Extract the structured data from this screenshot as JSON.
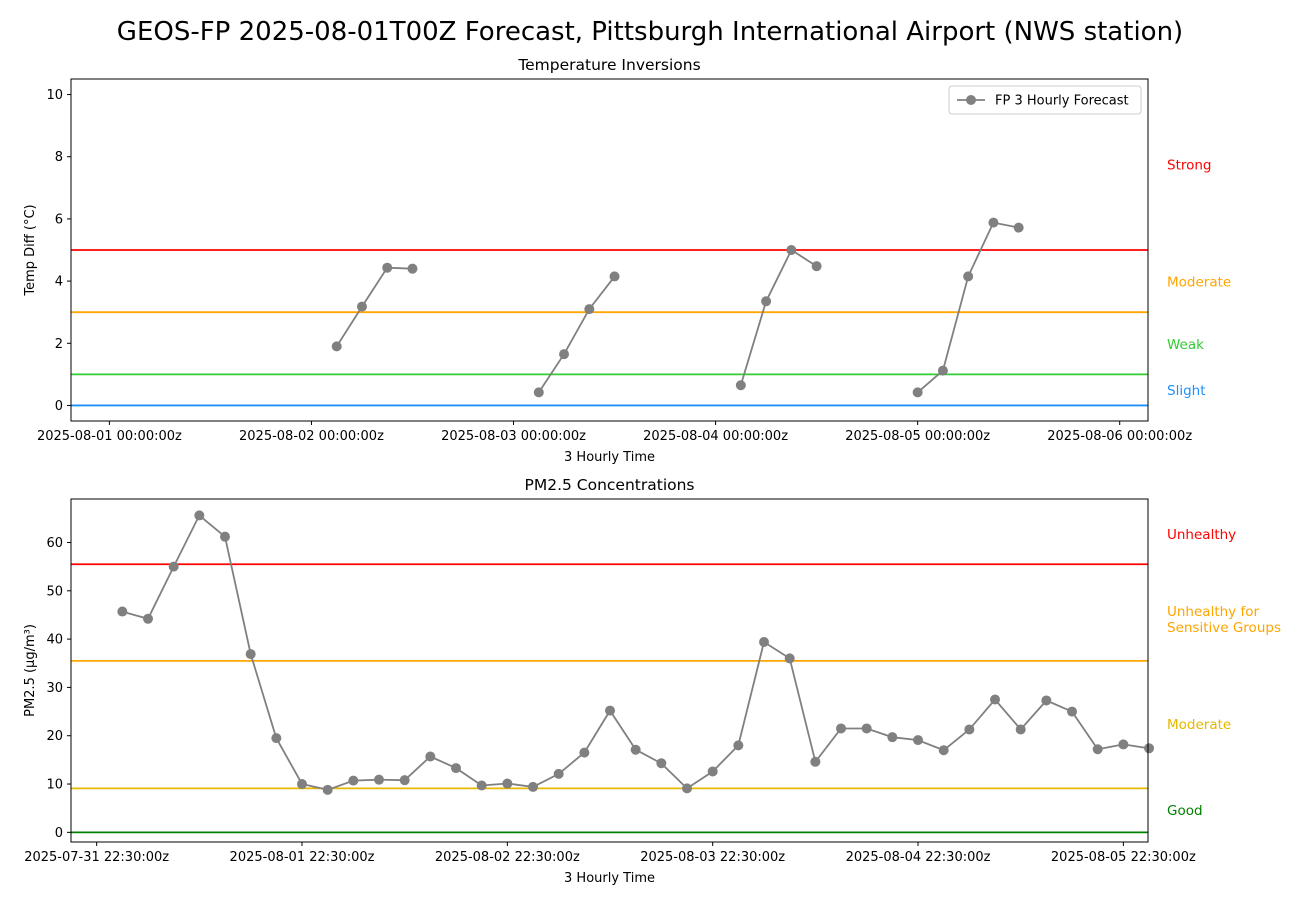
{
  "figure": {
    "title": "GEOS-FP 2025-08-01T00Z Forecast, Pittsburgh International Airport (NWS station)"
  },
  "colors": {
    "series": "#808080",
    "red": "#ff0000",
    "orange": "#ffa500",
    "green": "#32cd32",
    "blue": "#1e90ff",
    "gold": "#e6b800",
    "darkgreen": "#008000"
  },
  "chart_data": [
    {
      "type": "line",
      "title": "Temperature Inversions",
      "xlabel": "3 Hourly Time",
      "ylabel": "Temp Diff (°C)",
      "ylim": [
        -0.5,
        10.5
      ],
      "yticks": [
        0,
        2,
        4,
        6,
        8,
        10
      ],
      "xlim": [
        -0.19,
        5.14
      ],
      "xticks": [
        {
          "v": 0,
          "label": "2025-08-01 00:00:00z"
        },
        {
          "v": 1,
          "label": "2025-08-02 00:00:00z"
        },
        {
          "v": 2,
          "label": "2025-08-03 00:00:00z"
        },
        {
          "v": 3,
          "label": "2025-08-04 00:00:00z"
        },
        {
          "v": 4,
          "label": "2025-08-05 00:00:00z"
        },
        {
          "v": 5,
          "label": "2025-08-06 00:00:00z"
        }
      ],
      "legend": {
        "position": "top-right",
        "entries": [
          "FP 3 Hourly Forecast"
        ]
      },
      "series": [
        {
          "name": "FP 3 Hourly Forecast",
          "segments": [
            [
              [
                1.125,
                1.9
              ],
              [
                1.25,
                3.18
              ],
              [
                1.375,
                4.43
              ],
              [
                1.5,
                4.4
              ]
            ],
            [
              [
                2.125,
                0.42
              ],
              [
                2.25,
                1.65
              ],
              [
                2.375,
                3.1
              ],
              [
                2.5,
                4.15
              ]
            ],
            [
              [
                3.125,
                0.65
              ],
              [
                3.25,
                3.35
              ],
              [
                3.375,
                5.0
              ],
              [
                3.5,
                4.48
              ]
            ],
            [
              [
                4.0,
                0.42
              ],
              [
                4.125,
                1.12
              ],
              [
                4.25,
                4.15
              ],
              [
                4.375,
                5.88
              ],
              [
                4.5,
                5.72
              ]
            ]
          ]
        }
      ],
      "thresholds": [
        {
          "value": 0,
          "color": "blue"
        },
        {
          "value": 1,
          "color": "green"
        },
        {
          "value": 3,
          "color": "orange"
        },
        {
          "value": 5,
          "color": "red"
        }
      ],
      "category_labels": [
        {
          "text": "Strong",
          "y": 7.75,
          "color": "red"
        },
        {
          "text": "Moderate",
          "y": 3.98,
          "color": "orange"
        },
        {
          "text": "Weak",
          "y": 1.98,
          "color": "green"
        },
        {
          "text": "Slight",
          "y": 0.5,
          "color": "blue"
        }
      ]
    },
    {
      "type": "line",
      "title": "PM2.5 Concentrations",
      "xlabel": "3 Hourly Time",
      "ylabel": "PM2.5 (µg/m³)",
      "ylim": [
        -2,
        69
      ],
      "yticks": [
        0,
        10,
        20,
        30,
        40,
        50,
        60
      ],
      "xlim": [
        -0.125,
        5.12
      ],
      "xticks": [
        {
          "v": 0,
          "label": "2025-07-31 22:30:00z"
        },
        {
          "v": 1,
          "label": "2025-08-01 22:30:00z"
        },
        {
          "v": 2,
          "label": "2025-08-02 22:30:00z"
        },
        {
          "v": 3,
          "label": "2025-08-03 22:30:00z"
        },
        {
          "v": 4,
          "label": "2025-08-04 22:30:00z"
        },
        {
          "v": 5,
          "label": "2025-08-05 22:30:00z"
        }
      ],
      "series": [
        {
          "name": "",
          "x_start": 0.125,
          "x_step": 0.125,
          "values": [
            45.7,
            44.2,
            55.0,
            65.6,
            61.2,
            36.9,
            19.5,
            10.0,
            8.8,
            10.7,
            10.9,
            10.8,
            15.7,
            13.3,
            9.7,
            10.1,
            9.4,
            12.1,
            16.5,
            25.2,
            17.1,
            14.3,
            9.1,
            12.6,
            18.0,
            39.4,
            36.0,
            14.6,
            21.5,
            21.5,
            19.7,
            19.1,
            17.0,
            21.3,
            27.5,
            21.3,
            27.3,
            25.0,
            17.2,
            18.2,
            17.4
          ]
        }
      ],
      "thresholds": [
        {
          "value": 0,
          "color": "darkgreen"
        },
        {
          "value": 9.1,
          "color": "gold"
        },
        {
          "value": 35.5,
          "color": "orange"
        },
        {
          "value": 55.5,
          "color": "red"
        }
      ],
      "category_labels": [
        {
          "lines": [
            "Unhealthy"
          ],
          "y": 61.8,
          "color": "red"
        },
        {
          "lines": [
            "Unhealthy for",
            "Sensitive Groups"
          ],
          "y": 45.8,
          "color": "orange"
        },
        {
          "lines": [
            "Moderate"
          ],
          "y": 22.4,
          "color": "gold"
        },
        {
          "lines": [
            "Good"
          ],
          "y": 4.6,
          "color": "darkgreen"
        }
      ]
    }
  ]
}
